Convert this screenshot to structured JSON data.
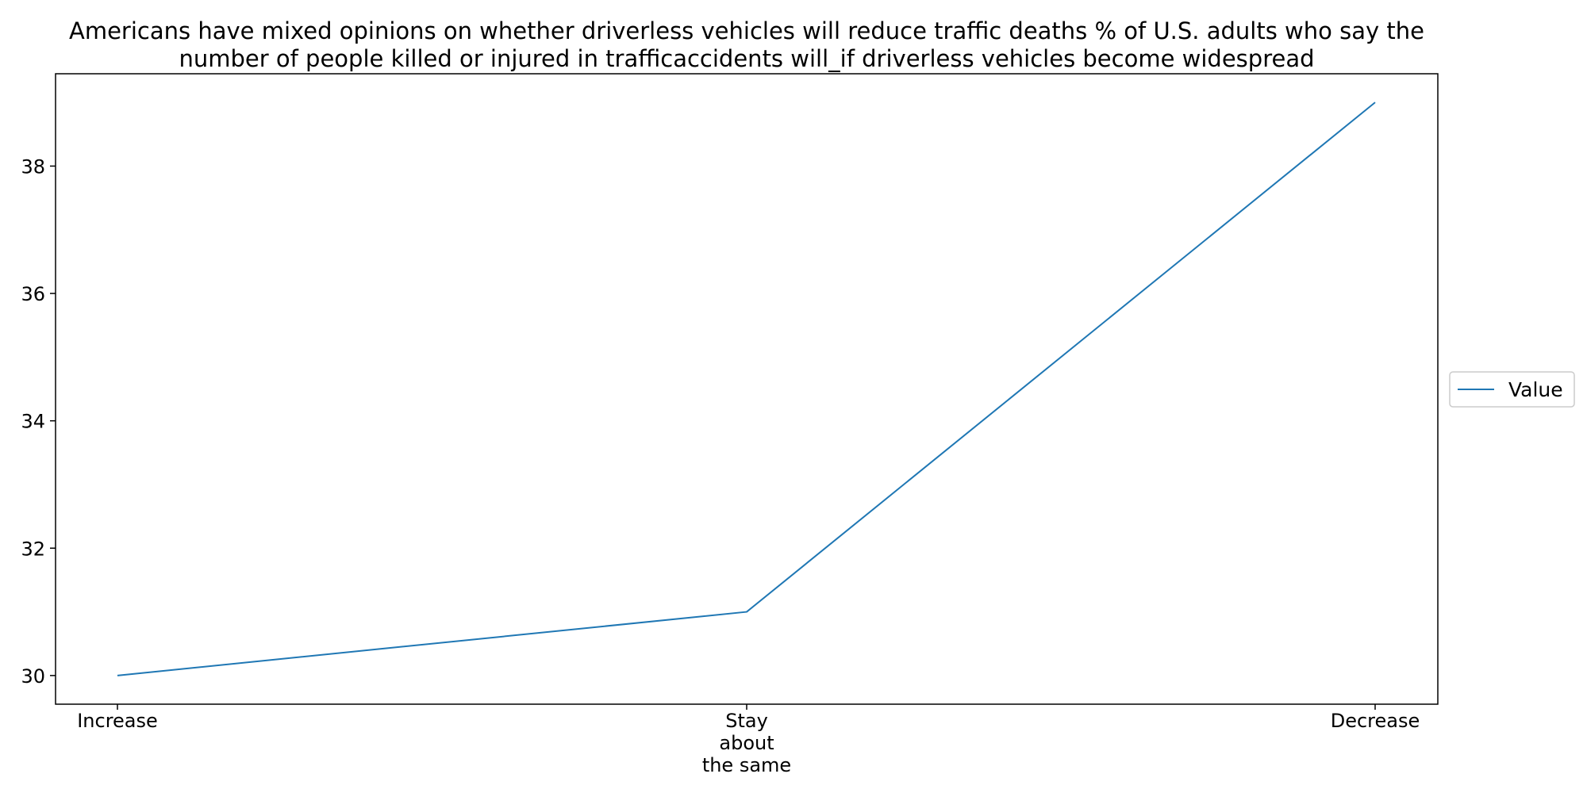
{
  "chart_data": {
    "type": "line",
    "title": "Americans have mixed opinions on whether driverless vehicles will reduce traffic deaths % of U.S. adults who say the number of people killed or injured in trafficaccidents will_if driverless vehicles become widespread",
    "title_lines": [
      "Americans have mixed opinions on whether driverless vehicles will reduce traffic deaths % of U.S. adults who say the",
      "number of people killed or injured in trafficaccidents will_if driverless vehicles become widespread"
    ],
    "xlabel": "",
    "ylabel": "",
    "categories": [
      "Increase",
      "Stay about the same",
      "Decrease"
    ],
    "category_label_lines": [
      [
        "Increase"
      ],
      [
        "Stay",
        "about",
        "the same"
      ],
      [
        "Decrease"
      ]
    ],
    "series": [
      {
        "name": "Value",
        "color": "#1f77b4",
        "values": [
          30,
          31,
          39
        ]
      }
    ],
    "yticks": [
      30,
      32,
      34,
      36,
      38
    ],
    "ylim": [
      29.55,
      39.45
    ],
    "grid": false,
    "legend_position": "center-right, outside plot"
  }
}
